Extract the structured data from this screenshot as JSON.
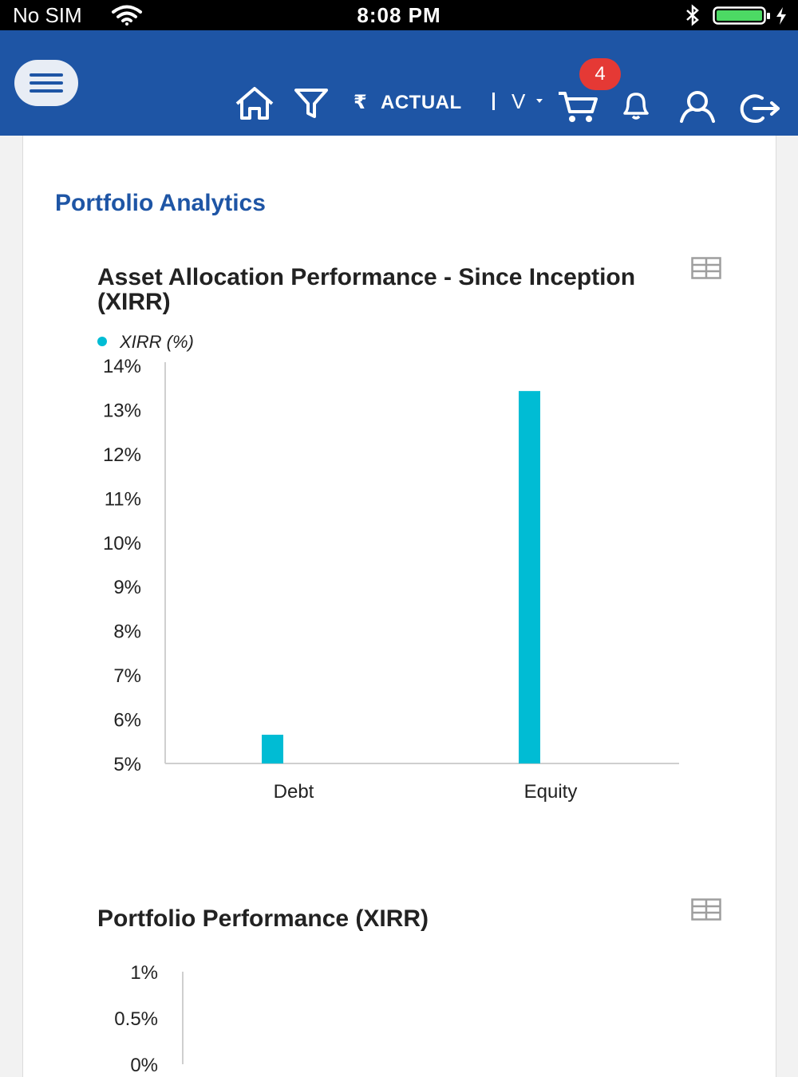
{
  "status_bar": {
    "carrier": "No SIM",
    "time": "8:08 PM"
  },
  "header": {
    "currency_symbol": "₹",
    "view_mode": "ACTUAL",
    "dropdown_value": "V",
    "cart_count": "4",
    "icons": [
      "menu-icon",
      "home-icon",
      "filter-icon",
      "chevron-down-icon",
      "cart-icon",
      "bell-icon",
      "user-icon",
      "logout-icon"
    ],
    "brand_color": "#1e55a5",
    "badge_color": "#e53935"
  },
  "page": {
    "title": "Portfolio Analytics"
  },
  "charts": [
    {
      "title": "Asset Allocation Performance - Since Inception (XIRR)",
      "legend_label": "XIRR (%)",
      "table_icon": "table-icon"
    },
    {
      "title": "Portfolio Performance (XIRR)",
      "table_icon": "table-icon"
    }
  ],
  "chart_data": [
    {
      "type": "bar",
      "title": "Asset Allocation Performance - Since Inception (XIRR)",
      "categories": [
        "Debt",
        "Equity"
      ],
      "series": [
        {
          "name": "XIRR (%)",
          "values": [
            5.65,
            13.42
          ],
          "color": "#00bcd4"
        }
      ],
      "ylim": [
        5,
        14
      ],
      "yticks": [
        "5%",
        "6%",
        "7%",
        "8%",
        "9%",
        "10%",
        "11%",
        "12%",
        "13%",
        "14%"
      ],
      "legend": "top-left"
    },
    {
      "type": "line",
      "title": "Portfolio Performance (XIRR)",
      "series": [],
      "yticks": [
        "1%",
        "0.5%",
        "0%"
      ]
    }
  ]
}
